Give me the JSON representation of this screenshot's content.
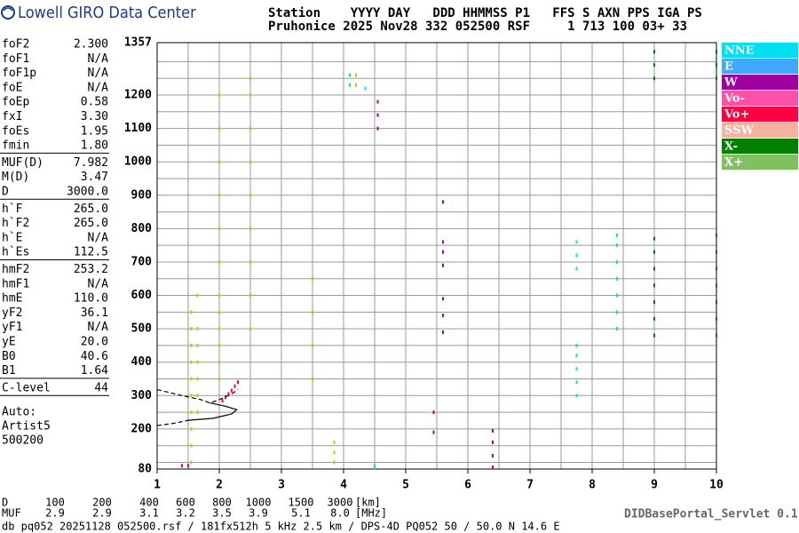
{
  "chart_data": {
    "type": "scatter",
    "brand": "Lowell GIRO Data Center",
    "header": [
      "Station    YYYY DAY   DDD HHMMSS P1   FFS S AXN PPS IGA PS",
      "Pruhonice 2025 Nov28 332 052500 RSF     1 713 100 03+ 33"
    ],
    "parameters": [
      [
        {
          "name": "foF2",
          "value": "2.300"
        },
        {
          "name": "foF1",
          "value": "N/A"
        },
        {
          "name": "foF1p",
          "value": "N/A"
        },
        {
          "name": "foE",
          "value": "N/A"
        },
        {
          "name": "foEp",
          "value": "0.58"
        },
        {
          "name": "fxI",
          "value": "3.30"
        },
        {
          "name": "foEs",
          "value": "1.95"
        },
        {
          "name": "fmin",
          "value": "1.80"
        }
      ],
      [
        {
          "name": "MUF(D)",
          "value": "7.982"
        },
        {
          "name": "M(D)",
          "value": "3.47"
        },
        {
          "name": "D",
          "value": "3000.0"
        }
      ],
      [
        {
          "name": "h`F",
          "value": "265.0"
        },
        {
          "name": "h`F2",
          "value": "265.0"
        },
        {
          "name": "h`E",
          "value": "N/A"
        },
        {
          "name": "h`Es",
          "value": "112.5"
        }
      ],
      [
        {
          "name": "hmF2",
          "value": "253.2"
        },
        {
          "name": "hmF1",
          "value": "N/A"
        },
        {
          "name": "hmE",
          "value": "110.0"
        },
        {
          "name": "yF2",
          "value": "36.1"
        },
        {
          "name": "yF1",
          "value": "N/A"
        },
        {
          "name": "yE",
          "value": "20.0"
        },
        {
          "name": "B0",
          "value": "40.6"
        },
        {
          "name": "B1",
          "value": "1.64"
        }
      ],
      [
        {
          "name": "C-level",
          "value": "44"
        }
      ]
    ],
    "auto": [
      "Auto:",
      "Artist5",
      "500200"
    ],
    "legend": [
      {
        "name": "NNE",
        "color": "#00e0f0"
      },
      {
        "name": "E",
        "color": "#40a8ff"
      },
      {
        "name": "W",
        "color": "#a000a0"
      },
      {
        "name": "Vo-",
        "color": "#ff50a8"
      },
      {
        "name": "Vo+",
        "color": "#ff0040"
      },
      {
        "name": "SSW",
        "color": "#f8b0a0"
      },
      {
        "name": "X-",
        "color": "#008000"
      },
      {
        "name": "X+",
        "color": "#80c060"
      }
    ],
    "xlim": [
      1,
      10
    ],
    "xticks": [
      1,
      2,
      3,
      4,
      5,
      6,
      7,
      8,
      9,
      10
    ],
    "xgrid": [
      1.5,
      2.5,
      3.5,
      4.5,
      5.5,
      6.5,
      7.5,
      8.5,
      9.5
    ],
    "ylim": [
      80,
      1357
    ],
    "yticks": [
      80,
      200,
      300,
      400,
      500,
      600,
      700,
      800,
      900,
      1000,
      1100,
      1200,
      1357
    ],
    "ygrid": [
      100,
      150,
      250,
      350,
      450,
      550,
      650,
      750,
      850,
      950,
      1050,
      1150,
      1250,
      1300
    ],
    "series": [
      {
        "color": "#c8c800",
        "x": [
          1.55,
          1.55,
          1.55,
          1.55,
          1.55,
          1.55,
          1.55,
          1.55,
          1.55,
          1.55,
          1.65,
          1.65,
          1.65,
          1.65,
          1.65,
          1.65,
          1.65,
          2.0,
          2.0,
          2.0,
          2.0,
          2.0,
          2.0,
          2.0,
          2.0,
          2.0,
          2.0,
          2.0,
          2.0,
          2.5,
          2.5,
          2.5,
          2.5,
          2.5,
          2.5,
          2.5,
          2.5,
          2.5,
          3.5,
          3.5,
          3.5,
          3.5,
          3.85,
          3.85,
          3.85,
          4.2,
          4.2
        ],
        "y": [
          100,
          150,
          200,
          250,
          300,
          350,
          400,
          450,
          500,
          550,
          250,
          300,
          350,
          400,
          450,
          500,
          600,
          350,
          400,
          450,
          500,
          550,
          600,
          700,
          800,
          900,
          1000,
          1100,
          1200,
          500,
          600,
          700,
          800,
          900,
          1000,
          1100,
          1200,
          1250,
          350,
          450,
          550,
          650,
          100,
          130,
          160,
          1230,
          1260
        ]
      },
      {
        "color": "#00e0f0",
        "x": [
          7.75,
          7.75,
          7.75,
          7.75,
          7.75,
          7.75,
          7.75,
          7.75,
          8.4,
          8.4,
          8.4,
          8.4,
          8.4,
          8.4,
          8.4,
          4.5,
          4.5,
          4.1,
          4.1,
          4.35
        ],
        "y": [
          300,
          340,
          380,
          420,
          450,
          680,
          720,
          760,
          500,
          550,
          600,
          650,
          700,
          750,
          780,
          85,
          90,
          1230,
          1260,
          1220
        ]
      },
      {
        "color": "#008000",
        "x": [
          9.0,
          9.0,
          9.0,
          9.0,
          9.0,
          9.0,
          9.0,
          9.0,
          9.0,
          9.0,
          10.0,
          10.0,
          10.0,
          10.0,
          10.0,
          10.0,
          10.0,
          10.0,
          10.0,
          10.0
        ],
        "y": [
          480,
          530,
          580,
          630,
          680,
          730,
          770,
          1250,
          1290,
          1330,
          480,
          530,
          580,
          630,
          680,
          730,
          780,
          1250,
          1290,
          1330
        ]
      },
      {
        "color": "#a000a0",
        "x": [
          4.55,
          4.55,
          4.55,
          5.6,
          5.6,
          5.6,
          5.6,
          5.6,
          5.6,
          5.6,
          6.4,
          6.4,
          6.4,
          6.4,
          5.45,
          5.45
        ],
        "y": [
          1100,
          1140,
          1180,
          490,
          540,
          590,
          690,
          730,
          760,
          880,
          85,
          120,
          160,
          195,
          250,
          190
        ]
      },
      {
        "color": "#ff0040",
        "x": [
          2.05,
          2.1,
          2.15,
          2.2,
          2.25,
          2.3,
          1.5,
          1.4
        ],
        "y": [
          285,
          295,
          305,
          315,
          328,
          340,
          90,
          90
        ]
      }
    ],
    "profile": [
      {
        "style": "dashed",
        "x": [
          1.0,
          1.3,
          1.5
        ],
        "y": [
          210,
          218,
          226
        ]
      },
      {
        "style": "solid",
        "x": [
          1.5,
          1.9,
          2.2,
          2.28,
          2.1,
          1.85
        ],
        "y": [
          226,
          232,
          245,
          258,
          268,
          278
        ]
      },
      {
        "style": "dashed",
        "x": [
          1.0,
          1.4,
          1.7,
          1.85,
          2.0,
          2.2,
          2.3
        ],
        "y": [
          318,
          300,
          288,
          278,
          288,
          305,
          318
        ]
      }
    ],
    "distance_table": [
      [
        "D",
        "100",
        "200",
        "400",
        "600",
        "800",
        "1000",
        "1500",
        "3000",
        "[km]"
      ],
      [
        "MUF",
        "2.9",
        "2.9",
        "3.1",
        "3.2",
        "3.5",
        "3.9",
        "5.1",
        "8.0",
        "[MHz]"
      ]
    ],
    "footer": "db pq052 20251128 052500.rsf / 181fx512h 5 kHz 2.5 km / DPS-4D PQ052 50 / 50.0 N 14.6 E",
    "servlet": "DIDBasePortal_Servlet 0.1"
  }
}
